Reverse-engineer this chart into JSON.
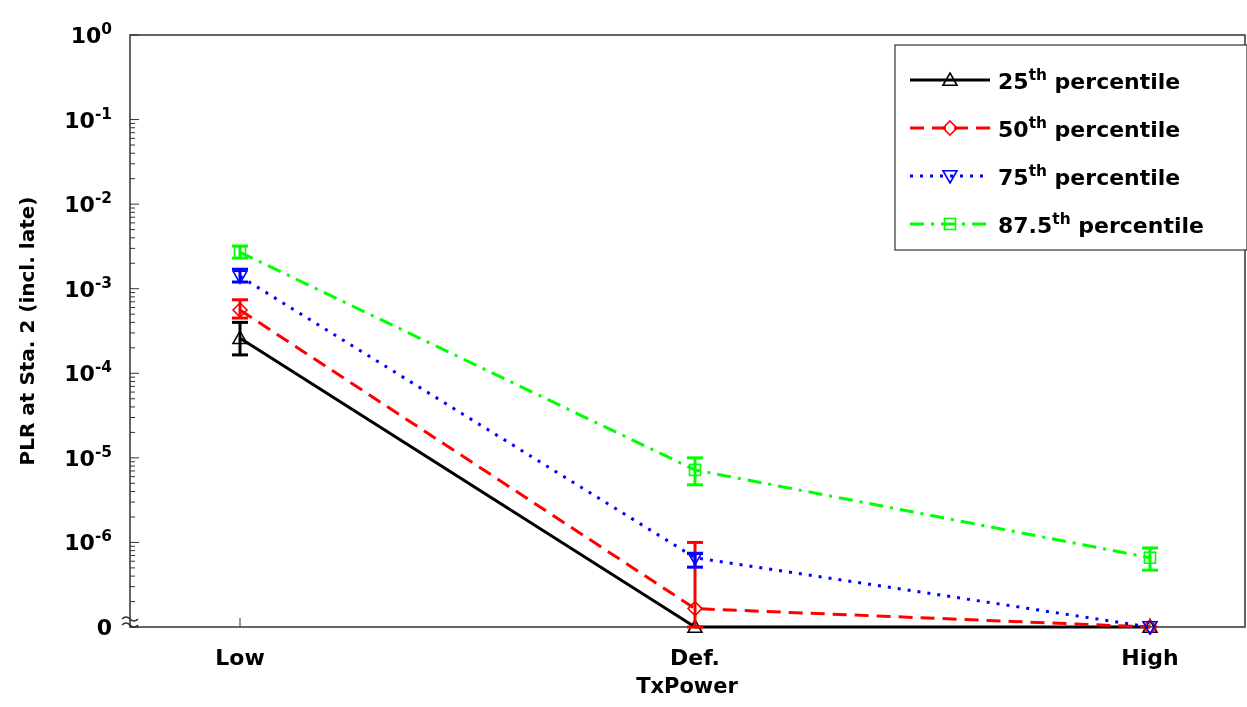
{
  "chart_data": {
    "type": "line",
    "xlabel": "TxPower",
    "ylabel": "PLR at Sta. 2 (incl. late)",
    "categories": [
      "Low",
      "Def.",
      "High"
    ],
    "log": "y",
    "ylim": [
      1e-07,
      1
    ],
    "yticks": [
      {
        "value": 1e-07,
        "label": "0"
      },
      {
        "value": 1e-06,
        "label": "10$^{-6}$"
      },
      {
        "value": 1e-05,
        "label": "10$^{-5}$"
      },
      {
        "value": 0.0001,
        "label": "10$^{-4}$"
      },
      {
        "value": 0.001,
        "label": "10$^{-3}$"
      },
      {
        "value": 0.01,
        "label": "10$^{-2}$"
      },
      {
        "value": 0.1,
        "label": "10$^{-1}$"
      },
      {
        "value": 1,
        "label": "10$^{0}$"
      }
    ],
    "legend": "top right",
    "grid": false,
    "series": [
      {
        "name": "25$^{th}$ percentile",
        "color": "#000000",
        "marker": "triangle",
        "line_style": "solid",
        "values": [
          0.00026,
          1e-07,
          1e-07
        ],
        "errors": [
          [
            0.000165,
            0.0004
          ],
          null,
          null
        ]
      },
      {
        "name": "50$^{th}$ percentile",
        "color": "#ff0000",
        "marker": "diamond",
        "line_style": "dashed",
        "values": [
          0.00056,
          1.65e-07,
          1e-07
        ],
        "errors": [
          [
            0.00045,
            0.00074
          ],
          [
            1e-07,
            1e-06
          ],
          null
        ]
      },
      {
        "name": "75$^{th}$ percentile",
        "color": "#0000ff",
        "marker": "triangle-down",
        "line_style": "dotted",
        "values": [
          0.0014,
          6.6e-07,
          1e-07
        ],
        "errors": [
          [
            0.0012,
            0.0017
          ],
          [
            5.1e-07,
            7.4e-07
          ],
          null
        ]
      },
      {
        "name": "87.5$^{th}$ percentile",
        "color": "#00ff00",
        "marker": "square",
        "line_style": "dashdot",
        "values": [
          0.0027,
          7.2e-06,
          6.6e-07
        ],
        "errors": [
          [
            0.0023,
            0.0032
          ],
          [
            4.8e-06,
            1e-05
          ],
          [
            4.7e-07,
            8.6e-07
          ]
        ]
      }
    ]
  }
}
